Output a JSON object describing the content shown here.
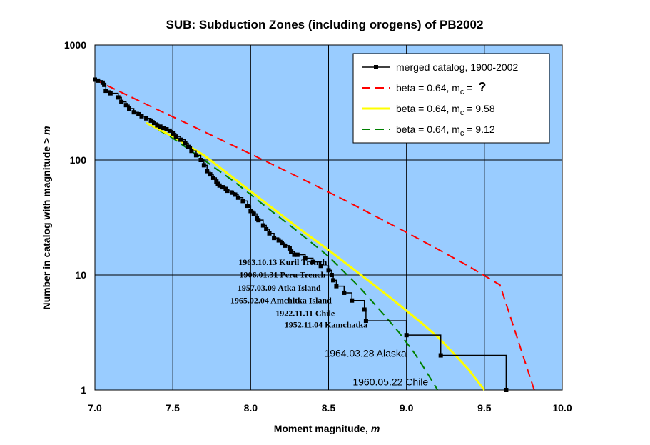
{
  "chart_data": {
    "type": "line",
    "title": "SUB: Subduction Zones (including orogens) of PB2002",
    "xlabel": "Moment magnitude, ",
    "xlabel_var": "m",
    "ylabel": "Number in catalog with magnitude  >  ",
    "ylabel_var": "m",
    "xlim": [
      7.0,
      10.0
    ],
    "ylim": [
      1,
      1000
    ],
    "yscale": "log",
    "grid": true,
    "legend_position": "top-right",
    "plot_background": "#99ccff",
    "x_ticks": [
      "7.0",
      "7.5",
      "8.0",
      "8.5",
      "9.0",
      "9.5",
      "10.0"
    ],
    "y_ticks": [
      "1",
      "10",
      "100",
      "1000"
    ],
    "series": [
      {
        "name": "merged catalog, 1900-2002",
        "color": "#000000",
        "style": "step-markers",
        "x": [
          7.0,
          7.02,
          7.05,
          7.06,
          7.07,
          7.1,
          7.15,
          7.17,
          7.2,
          7.22,
          7.25,
          7.28,
          7.3,
          7.33,
          7.36,
          7.38,
          7.4,
          7.42,
          7.44,
          7.46,
          7.48,
          7.5,
          7.52,
          7.55,
          7.58,
          7.6,
          7.62,
          7.65,
          7.68,
          7.7,
          7.72,
          7.74,
          7.76,
          7.78,
          7.79,
          7.8,
          7.82,
          7.84,
          7.85,
          7.88,
          7.9,
          7.92,
          7.95,
          7.98,
          8.0,
          8.02,
          8.04,
          8.05,
          8.08,
          8.1,
          8.12,
          8.15,
          8.18,
          8.2,
          8.22,
          8.25,
          8.26,
          8.28,
          8.3,
          8.35,
          8.4,
          8.45,
          8.5,
          8.52,
          8.53,
          8.55,
          8.6,
          8.65,
          8.73,
          8.74,
          9.0,
          9.22,
          9.64
        ],
        "y": [
          500,
          490,
          470,
          450,
          400,
          380,
          350,
          320,
          300,
          280,
          260,
          250,
          240,
          230,
          220,
          210,
          200,
          195,
          190,
          185,
          180,
          170,
          160,
          150,
          140,
          130,
          120,
          110,
          100,
          90,
          80,
          75,
          70,
          65,
          62,
          60,
          58,
          56,
          54,
          52,
          50,
          47,
          44,
          40,
          36,
          34,
          31,
          30,
          27,
          25,
          23,
          21,
          20,
          19,
          18,
          17,
          16,
          15,
          15,
          14,
          13,
          12,
          11,
          10,
          9,
          8,
          7,
          6,
          5,
          4,
          3,
          2,
          1
        ]
      },
      {
        "name_prefix": "beta = 0.64, m",
        "name_sub": "c",
        "name_suffix": " = ",
        "name_mark": "?",
        "color": "#ff0000",
        "style": "dashed",
        "x": [
          7.0,
          7.2,
          7.4,
          7.6,
          7.8,
          8.0,
          8.2,
          8.4,
          8.6,
          8.8,
          9.0,
          9.2,
          9.4,
          9.6,
          9.82
        ],
        "y": [
          500,
          370,
          275,
          205,
          152,
          113,
          83.5,
          61.5,
          45,
          32.5,
          23.5,
          16.8,
          11.9,
          8.2,
          1
        ]
      },
      {
        "name_prefix": "beta = 0.64, m",
        "name_sub": "c",
        "name_suffix": " = 9.58",
        "color": "#ffff00",
        "style": "solid",
        "x": [
          7.33,
          7.5,
          7.7,
          7.9,
          8.1,
          8.3,
          8.5,
          8.7,
          8.9,
          9.1,
          9.2,
          9.3,
          9.4,
          9.5
        ],
        "y": [
          210,
          160,
          110,
          68,
          42,
          26,
          16.5,
          10.2,
          6.3,
          3.8,
          2.9,
          2.1,
          1.5,
          1.0
        ]
      },
      {
        "name_prefix": "beta = 0.64, m",
        "name_sub": "c",
        "name_suffix": " = 9.12",
        "color": "#008000",
        "style": "dashed",
        "x": [
          7.33,
          7.5,
          7.7,
          7.9,
          8.1,
          8.3,
          8.5,
          8.7,
          8.85,
          8.95,
          9.05,
          9.12,
          9.2
        ],
        "y": [
          210,
          155,
          100,
          64,
          39,
          24,
          14.5,
          7.8,
          4.6,
          3.2,
          2.1,
          1.5,
          1.0
        ]
      }
    ],
    "annotations": [
      {
        "text": "1963.10.13 Kuril Trench",
        "size": "small"
      },
      {
        "text": "1906.01.31 Peru Trench",
        "size": "small"
      },
      {
        "text": "1957.03.09 Atka Island",
        "size": "small"
      },
      {
        "text": "1965.02.04 Amchitka Island",
        "size": "small"
      },
      {
        "text": "1922.11.11 Chile",
        "size": "small"
      },
      {
        "text": "1952.11.04 Kamchatka",
        "size": "small"
      },
      {
        "text": "1964.03.28 Alaska",
        "size": "large"
      },
      {
        "text": "1960.05.22 Chile",
        "size": "large"
      }
    ]
  }
}
